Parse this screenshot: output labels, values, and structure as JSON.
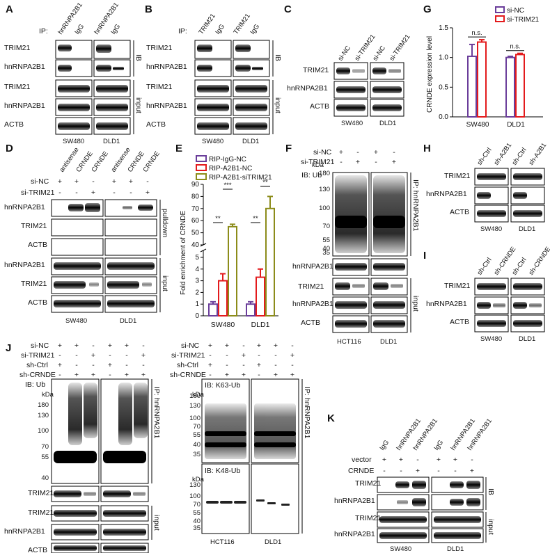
{
  "panels": {
    "A": {
      "letter": "A",
      "ip": "IP:",
      "lanes": [
        "hnRNPA2B1",
        "IgG",
        "hnRNPA2B1",
        "IgG"
      ],
      "rows": [
        "TRIM21",
        "hnRNPA2B1",
        "TRIM21",
        "hnRNPA2B1",
        "ACTB"
      ],
      "side_ib": "IB",
      "side_input": "input",
      "cells": [
        "SW480",
        "DLD1"
      ]
    },
    "B": {
      "letter": "B",
      "ip": "IP:",
      "lanes": [
        "TRIM21",
        "IgG",
        "TRIM21",
        "IgG"
      ],
      "rows": [
        "TRIM21",
        "hnRNPA2B1",
        "TRIM21",
        "hnRNPA2B1",
        "ACTB"
      ],
      "side_ib": "IB",
      "side_input": "input",
      "cells": [
        "SW480",
        "DLD1"
      ]
    },
    "C": {
      "letter": "C",
      "lanes": [
        "si-NC",
        "si-TRIM21",
        "si-NC",
        "si-TRIM21"
      ],
      "rows": [
        "TRIM21",
        "hnRNPA2B1",
        "ACTB"
      ],
      "cells": [
        "SW480",
        "DLD1"
      ]
    },
    "D": {
      "letter": "D",
      "lanes": [
        "antisense",
        "CRNDE",
        "CRNDE",
        "antisense",
        "CRNDE",
        "CRNDE"
      ],
      "conds": [
        {
          "label": "si-NC",
          "signs": [
            "+",
            "+",
            "-",
            "+",
            "+",
            "-"
          ]
        },
        {
          "label": "si-TRIM21",
          "signs": [
            "-",
            "-",
            "+",
            "-",
            "-",
            "+"
          ]
        }
      ],
      "rows": [
        "hnRNPA2B1",
        "TRIM21",
        "ACTB",
        "hnRNPA2B1",
        "TRIM21",
        "ACTB"
      ],
      "side_pulldown": "pulldown",
      "side_input": "input",
      "cells": [
        "SW480",
        "DLD1"
      ]
    },
    "E": {
      "letter": "E"
    },
    "F": {
      "letter": "F",
      "conds": [
        {
          "label": "si-NC",
          "signs": [
            "+",
            "-",
            "+",
            "-"
          ]
        },
        {
          "label": "si-TRIM21",
          "signs": [
            "-",
            "+",
            "-",
            "+"
          ]
        }
      ],
      "ib_label": "IB: Ub",
      "kda": "kDa",
      "markers": [
        "180",
        "130",
        "100",
        "70",
        "55",
        "40",
        "35"
      ],
      "rows": [
        "hnRNPA2B1",
        "TRIM21",
        "hnRNPA2B1",
        "ACTB"
      ],
      "side_ip": "IP: hnRNPA2B1",
      "side_input": "input",
      "cells": [
        "HCT116",
        "DLD1"
      ]
    },
    "G": {
      "letter": "G"
    },
    "H": {
      "letter": "H",
      "lanes": [
        "sh-Ctrl",
        "sh-A2B1",
        "sh-Ctrl",
        "sh-A2B1"
      ],
      "rows": [
        "TRIM21",
        "hnRNPA2B1",
        "ACTB"
      ],
      "cells": [
        "SW480",
        "DLD1"
      ]
    },
    "I": {
      "letter": "I",
      "lanes": [
        "sh-Ctrl",
        "sh-CRNDE",
        "sh-Ctrl",
        "sh-CRNDE"
      ],
      "rows": [
        "TRIM21",
        "hnRNPA2B1",
        "ACTB"
      ],
      "cells": [
        "SW480",
        "DLD1"
      ]
    },
    "J": {
      "letter": "J",
      "conds": [
        {
          "label": "si-NC",
          "signs": [
            "+",
            "+",
            "-",
            "+",
            "+",
            "-"
          ]
        },
        {
          "label": "si-TRIM21",
          "signs": [
            "-",
            "-",
            "+",
            "-",
            "-",
            "+"
          ]
        },
        {
          "label": "sh-Ctrl",
          "signs": [
            "+",
            "-",
            "-",
            "+",
            "-",
            "-"
          ]
        },
        {
          "label": "sh-CRNDE",
          "signs": [
            "-",
            "+",
            "+",
            "-",
            "+",
            "+"
          ]
        }
      ],
      "ib_label": "IB: Ub",
      "kda": "kDa",
      "markers": [
        "180",
        "130",
        "100",
        "70",
        "55",
        "40"
      ],
      "rows": [
        "TRIM21",
        "TRIM21",
        "hnRNPA2B1",
        "ACTB"
      ],
      "side_ip": "IP: hnRNPA2B1",
      "side_input": "input",
      "cells": [
        "HCT116",
        "DLD1"
      ]
    },
    "J2": {
      "conds": [
        {
          "label": "si-NC",
          "signs": [
            "+",
            "+",
            "-",
            "+",
            "+",
            "-"
          ]
        },
        {
          "label": "si-TRIM21",
          "signs": [
            "-",
            "-",
            "+",
            "-",
            "-",
            "+"
          ]
        },
        {
          "label": "sh-Ctrl",
          "signs": [
            "+",
            "-",
            "-",
            "+",
            "-",
            "-"
          ]
        },
        {
          "label": "sh-CRNDE",
          "signs": [
            "-",
            "+",
            "+",
            "-",
            "+",
            "+"
          ]
        }
      ],
      "ib_k63": "IB: K63-Ub",
      "ib_k48": "IB: K48-Ub",
      "kda": "kDa",
      "markers_top": [
        "180",
        "130",
        "100",
        "70",
        "55",
        "40",
        "35"
      ],
      "markers_bot": [
        "130",
        "100",
        "70",
        "55",
        "40",
        "35"
      ],
      "side_ip": "IP: hnRNPA2B1",
      "cells": [
        "HCT116",
        "DLD1"
      ]
    },
    "K": {
      "letter": "K",
      "lanes": [
        "IgG",
        "hnRNPA2B1",
        "hnRNPA2B1",
        "IgG",
        "hnRNPA2B1",
        "hnRNPA2B1"
      ],
      "conds": [
        {
          "label": "vector",
          "signs": [
            "+",
            "+",
            "-",
            "+",
            "+",
            "-"
          ]
        },
        {
          "label": "CRNDE",
          "signs": [
            "-",
            "-",
            "+",
            "-",
            "-",
            "+"
          ]
        }
      ],
      "rows": [
        "TRIM21",
        "hnRNPA2B1",
        "TRIM21",
        "hnRNPA2B1",
        "ACTB"
      ],
      "side_ib": "IB",
      "side_input": "input",
      "cells": [
        "SW480",
        "DLD1"
      ]
    }
  },
  "chart_data": [
    {
      "panel": "G",
      "type": "bar",
      "categories": [
        "SW480",
        "DLD1"
      ],
      "series": [
        {
          "name": "si-NC",
          "values": [
            1.02,
            1.0
          ],
          "err": [
            0.2,
            0.02
          ],
          "color": "#6a3d9a"
        },
        {
          "name": "si-TRIM21",
          "values": [
            1.26,
            1.05
          ],
          "err": [
            0.04,
            0.02
          ],
          "color": "#e31a1c"
        }
      ],
      "ylabel": "CRNDE expression level",
      "ylim": [
        0,
        1.5
      ],
      "yticks": [
        "0.0",
        "0.5",
        "1.0",
        "1.5"
      ],
      "annotations": [
        "n.s.",
        "n.s."
      ],
      "legend": "top-right"
    },
    {
      "panel": "E",
      "type": "bar",
      "categories": [
        "SW480",
        "DLD1"
      ],
      "series": [
        {
          "name": "RIP-IgG-NC",
          "values": [
            1.0,
            1.0
          ],
          "err": [
            0.2,
            0.2
          ],
          "color": "#6a3d9a"
        },
        {
          "name": "RIP-A2B1-NC",
          "values": [
            3.0,
            3.3
          ],
          "err": [
            0.6,
            0.7
          ],
          "color": "#e31a1c"
        },
        {
          "name": "RIP-A2B1-siTRIM21",
          "values": [
            55,
            70
          ],
          "err": [
            2,
            10
          ],
          "color": "#8c8c1a"
        }
      ],
      "ylabel": "Fold enrichment of CRNDE",
      "yticks": [
        "0",
        "1",
        "2",
        "3",
        "4",
        "5",
        "40",
        "50",
        "60",
        "70",
        "80",
        "90"
      ],
      "annotations": [
        "**",
        "***",
        "**",
        "**"
      ],
      "legend": "top"
    }
  ]
}
